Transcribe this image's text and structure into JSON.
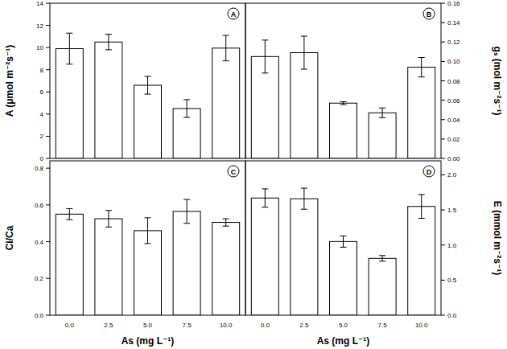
{
  "chart_data": [
    {
      "type": "bar",
      "title": "A",
      "ylabel": "A (μmol m⁻²s⁻¹)",
      "categories": [
        "0.0",
        "2.5",
        "5.0",
        "7.5",
        "10.0"
      ],
      "values": [
        9.9,
        10.5,
        6.6,
        4.5,
        9.95
      ],
      "errors": [
        1.4,
        0.7,
        0.8,
        0.8,
        1.15
      ],
      "color": "#ffffff",
      "ylim": [
        0,
        14
      ],
      "yticks": [
        0,
        2,
        4,
        6,
        8,
        10,
        12,
        14
      ],
      "tick_labels": "y"
    },
    {
      "type": "bar",
      "title": "B",
      "ylabel": "gₛ (mol m⁻²s⁻¹)",
      "categories": [
        "0.0",
        "2.5",
        "5.0",
        "7.5",
        "10.0"
      ],
      "values": [
        0.105,
        0.109,
        0.057,
        0.047,
        0.094
      ],
      "errors": [
        0.017,
        0.017,
        0.0015,
        0.005,
        0.01
      ],
      "color": "#ffffff",
      "ylim": [
        0,
        0.16
      ],
      "yticks": [
        {
          "value": 0,
          "label": "0.00"
        },
        0.02,
        0.04,
        0.06,
        0.08,
        {
          "value": 0.1,
          "label": "0.10"
        },
        0.12,
        0.14,
        0.16
      ],
      "tick_labels": "y"
    },
    {
      "type": "bar",
      "title": "C",
      "ylabel": "Ci/Ca",
      "xlabel": "As (mg L⁻¹)",
      "categories": [
        "0.0",
        "2.5",
        "5.0",
        "7.5",
        "10.0"
      ],
      "values": [
        0.55,
        0.525,
        0.46,
        0.565,
        0.505
      ],
      "errors": [
        0.03,
        0.045,
        0.07,
        0.065,
        0.02
      ],
      "color": "#ffffff",
      "ylim": [
        0,
        0.84
      ],
      "yticks": [
        {
          "value": 0,
          "label": "0.0"
        },
        0.2,
        0.4,
        0.6,
        0.8
      ]
    },
    {
      "type": "bar",
      "title": "D",
      "ylabel": "E (mmol m⁻²s⁻¹)",
      "xlabel": "As (mg L⁻¹)",
      "categories": [
        "0.0",
        "2.5",
        "5.0",
        "7.5",
        "10.0"
      ],
      "values": [
        1.67,
        1.66,
        1.05,
        0.81,
        1.55
      ],
      "errors": [
        0.13,
        0.15,
        0.08,
        0.04,
        0.17
      ],
      "color": "#ffffff",
      "ylim": [
        0,
        2.2
      ],
      "yticks": [
        {
          "value": 0,
          "label": "0.0"
        },
        0.5,
        {
          "value": 1,
          "label": "1.0"
        },
        1.5,
        {
          "value": 2,
          "label": "2.0"
        }
      ]
    }
  ]
}
